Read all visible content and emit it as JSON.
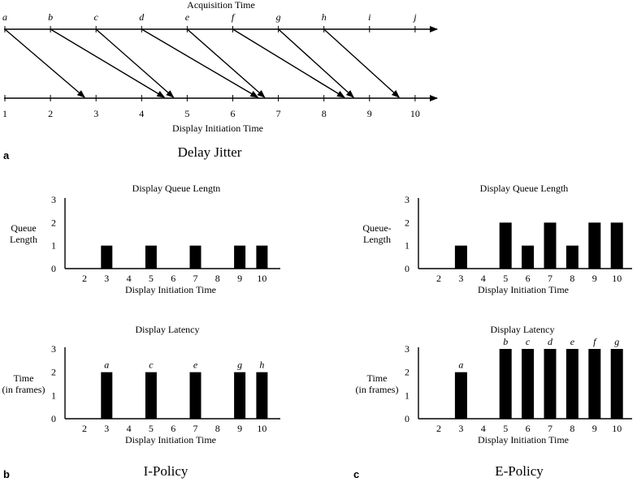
{
  "figure": {
    "panel_a_label": "a",
    "panel_b_label": "b",
    "panel_c_label": "c",
    "panel_a_caption": "Delay Jitter",
    "panel_b_caption": "I-Policy",
    "panel_c_caption": "E-Policy"
  },
  "chart_data": [
    {
      "type": "diagram-timeline",
      "title": "Acquisition Time",
      "xlabel": "Display Initiation Time",
      "acquisition_labels": [
        "a",
        "b",
        "c",
        "d",
        "e",
        "f",
        "g",
        "h",
        "i",
        "j"
      ],
      "display_ticks": [
        "1",
        "2",
        "3",
        "4",
        "5",
        "6",
        "7",
        "8",
        "9",
        "10"
      ],
      "arrivals": [
        {
          "frame": "a",
          "acquired": 1,
          "arrives": 2.75
        },
        {
          "frame": "b",
          "acquired": 2,
          "arrives": 4.5
        },
        {
          "frame": "c",
          "acquired": 3,
          "arrives": 4.7
        },
        {
          "frame": "d",
          "acquired": 4,
          "arrives": 6.55
        },
        {
          "frame": "e",
          "acquired": 5,
          "arrives": 6.7
        },
        {
          "frame": "f",
          "acquired": 6,
          "arrives": 8.45
        },
        {
          "frame": "g",
          "acquired": 7,
          "arrives": 8.65
        },
        {
          "frame": "h",
          "acquired": 8,
          "arrives": 9.65
        }
      ]
    },
    {
      "type": "bar",
      "panel": "b-top",
      "title": "Display Queue Lengtn",
      "xlabel": "Display Initiation Time",
      "ylabel": [
        "Queue",
        "Length"
      ],
      "categories": [
        "2",
        "3",
        "4",
        "5",
        "6",
        "7",
        "8",
        "9",
        "10"
      ],
      "values": [
        0,
        1,
        0,
        1,
        0,
        1,
        0,
        1,
        1
      ],
      "yticks": [
        "0",
        "1",
        "2",
        "3"
      ],
      "ylim": [
        0,
        3
      ]
    },
    {
      "type": "bar",
      "panel": "b-bottom",
      "title": "Display Latency",
      "xlabel": "Display Initiation Time",
      "ylabel": [
        "Time",
        "(in frames)"
      ],
      "categories": [
        "2",
        "3",
        "4",
        "5",
        "6",
        "7",
        "8",
        "9",
        "10"
      ],
      "values": [
        0,
        2,
        0,
        2,
        0,
        2,
        0,
        2,
        2
      ],
      "bar_labels": [
        "",
        "a",
        "",
        "c",
        "",
        "e",
        "",
        "g",
        "h"
      ],
      "yticks": [
        "0",
        "1",
        "2",
        "3"
      ],
      "ylim": [
        0,
        3
      ]
    },
    {
      "type": "bar",
      "panel": "c-top",
      "title": "Display Queue Length",
      "xlabel": "Display Initiation Time",
      "ylabel": [
        "Queue-",
        "Length"
      ],
      "categories": [
        "2",
        "3",
        "4",
        "5",
        "6",
        "7",
        "8",
        "9",
        "10"
      ],
      "values": [
        0,
        1,
        0,
        2,
        1,
        2,
        1,
        2,
        2
      ],
      "yticks": [
        "0",
        "1",
        "2",
        "3"
      ],
      "ylim": [
        0,
        3
      ]
    },
    {
      "type": "bar",
      "panel": "c-bottom",
      "title": "Display Latency",
      "xlabel": "Display Initiation Time",
      "ylabel": [
        "Time",
        "(in frames)"
      ],
      "categories": [
        "2",
        "3",
        "4",
        "5",
        "6",
        "7",
        "8",
        "9",
        "10"
      ],
      "values": [
        0,
        2,
        0,
        3,
        3,
        3,
        3,
        3,
        3
      ],
      "bar_labels": [
        "",
        "a",
        "",
        "b",
        "c",
        "d",
        "e",
        "f",
        "g"
      ],
      "yticks": [
        "0",
        "1",
        "2",
        "3"
      ],
      "ylim": [
        0,
        3
      ]
    }
  ]
}
